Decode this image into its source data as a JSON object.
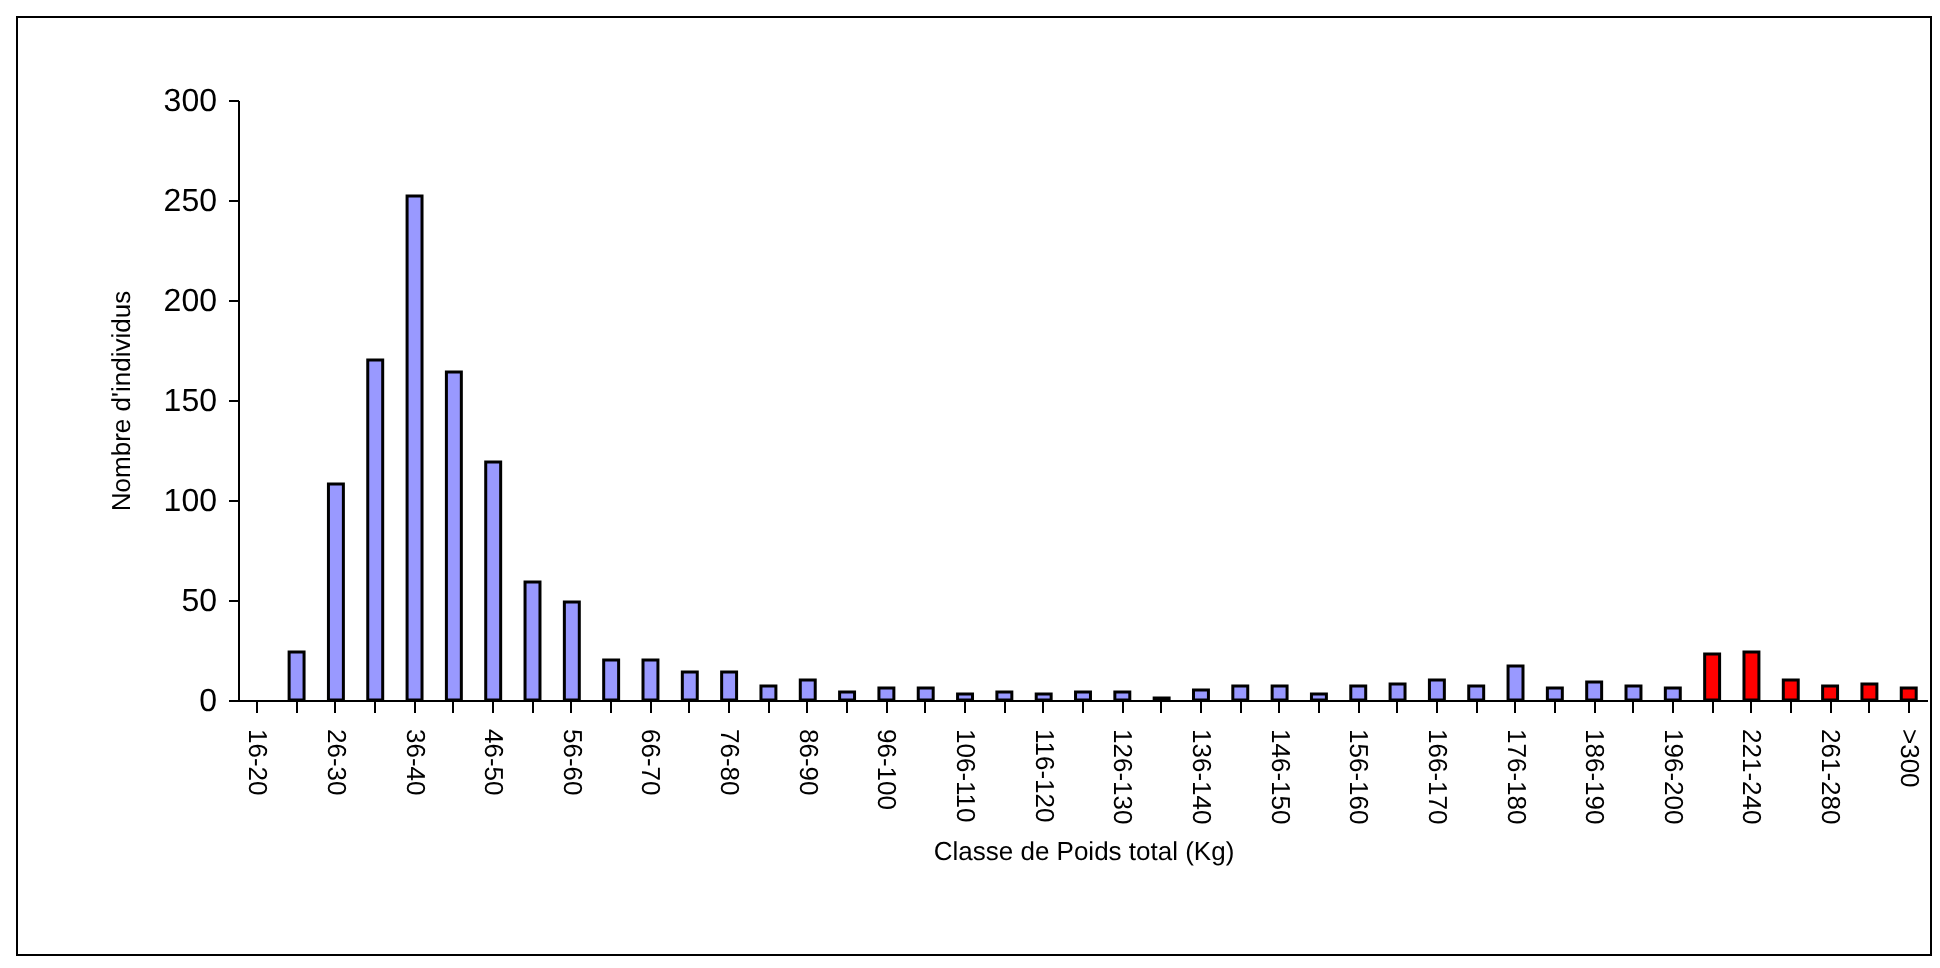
{
  "chart_data": {
    "type": "bar",
    "xlabel": "Classe de Poids total (Kg)",
    "ylabel": "Nombre d'individus",
    "categories": [
      "16-20",
      null,
      "26-30",
      null,
      "36-40",
      null,
      "46-50",
      null,
      "56-60",
      null,
      "66-70",
      null,
      "76-80",
      null,
      "86-90",
      null,
      "96-100",
      null,
      "106-110",
      null,
      "116-120",
      null,
      "126-130",
      null,
      "136-140",
      null,
      "146-150",
      null,
      "156-160",
      null,
      "166-170",
      null,
      "176-180",
      null,
      "186-190",
      null,
      "196-200",
      null,
      "221-240",
      null,
      "261-280",
      null,
      ">300"
    ],
    "values": [
      0,
      24,
      108,
      170,
      252,
      164,
      119,
      59,
      49,
      20,
      20,
      14,
      14,
      7,
      10,
      4,
      6,
      6,
      3,
      4,
      3,
      4,
      4,
      1,
      5,
      7,
      7,
      3,
      7,
      8,
      10,
      7,
      17,
      6,
      9,
      7,
      6,
      23,
      24,
      10,
      7,
      8,
      6
    ],
    "colors": [
      "#9999ff",
      "#9999ff",
      "#9999ff",
      "#9999ff",
      "#9999ff",
      "#9999ff",
      "#9999ff",
      "#9999ff",
      "#9999ff",
      "#9999ff",
      "#9999ff",
      "#9999ff",
      "#9999ff",
      "#9999ff",
      "#9999ff",
      "#9999ff",
      "#9999ff",
      "#9999ff",
      "#9999ff",
      "#9999ff",
      "#9999ff",
      "#9999ff",
      "#9999ff",
      "#9999ff",
      "#9999ff",
      "#9999ff",
      "#9999ff",
      "#9999ff",
      "#9999ff",
      "#9999ff",
      "#9999ff",
      "#9999ff",
      "#9999ff",
      "#9999ff",
      "#9999ff",
      "#9999ff",
      "#9999ff",
      "#ff0000",
      "#ff0000",
      "#ff0000",
      "#ff0000",
      "#ff0000",
      "#ff0000"
    ],
    "ylim": [
      0,
      300
    ],
    "yticks": [
      0,
      50,
      100,
      150,
      200,
      250,
      300
    ],
    "grid": false
  }
}
